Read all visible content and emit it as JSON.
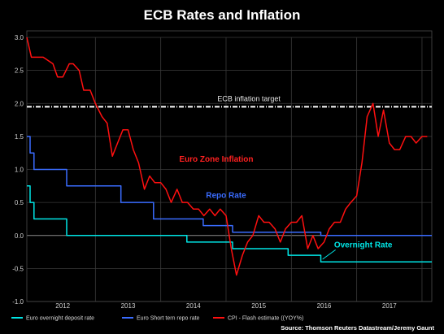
{
  "chart_data": {
    "type": "line",
    "title": "ECB Rates and Inflation",
    "xlabel": "",
    "ylabel": "",
    "xlim": [
      2011.45,
      2017.65
    ],
    "ylim": [
      -1.0,
      3.0
    ],
    "y_ticks": [
      "3.0",
      "2.5",
      "2.0",
      "1.5",
      "1.0",
      "0.5",
      "0.0",
      "-0.5",
      "-1.0"
    ],
    "x_ticks": [
      {
        "label": "2012",
        "x": 2012.0
      },
      {
        "label": "2013",
        "x": 2013.0
      },
      {
        "label": "2014",
        "x": 2014.0
      },
      {
        "label": "2015",
        "x": 2015.0
      },
      {
        "label": "2016",
        "x": 2016.0
      },
      {
        "label": "2017",
        "x": 2017.0
      }
    ],
    "x_grid": [
      2012.5,
      2013.5,
      2014.5,
      2015.5,
      2016.5,
      2017.5
    ],
    "grid": true,
    "target": {
      "value": 1.95,
      "label": "ECB inflation target",
      "color": "#ffffff"
    },
    "series": [
      {
        "name": "Euro overnight deposit rate",
        "color": "#00e5e5",
        "step": true,
        "x": [
          2011.45,
          2011.5,
          2011.56,
          2012.06,
          2013.9,
          2014.6,
          2015.45,
          2015.95,
          2017.65
        ],
        "y": [
          0.75,
          0.5,
          0.25,
          0.0,
          -0.1,
          -0.2,
          -0.3,
          -0.4,
          -0.4
        ]
      },
      {
        "name": "Euro Short tern repo rate",
        "color": "#3a6cff",
        "step": true,
        "x": [
          2011.45,
          2011.5,
          2011.56,
          2012.06,
          2012.89,
          2013.39,
          2013.89,
          2014.15,
          2014.6,
          2015.0,
          2015.95,
          2017.65
        ],
        "y": [
          1.5,
          1.25,
          1.0,
          0.75,
          0.5,
          0.25,
          0.25,
          0.15,
          0.05,
          0.05,
          0.0,
          0.0
        ]
      },
      {
        "name": "CPI - Flash estimate ((YOY%)",
        "color": "#ff1010",
        "step": false,
        "x": [
          2011.45,
          2011.52,
          2011.6,
          2011.7,
          2011.85,
          2011.92,
          2012.0,
          2012.1,
          2012.16,
          2012.25,
          2012.32,
          2012.42,
          2012.5,
          2012.6,
          2012.68,
          2012.76,
          2012.84,
          2012.92,
          2013.0,
          2013.08,
          2013.16,
          2013.25,
          2013.33,
          2013.41,
          2013.5,
          2013.58,
          2013.66,
          2013.75,
          2013.83,
          2013.91,
          2014.0,
          2014.08,
          2014.16,
          2014.25,
          2014.33,
          2014.41,
          2014.5,
          2014.58,
          2014.66,
          2014.75,
          2014.83,
          2014.91,
          2015.0,
          2015.08,
          2015.16,
          2015.25,
          2015.33,
          2015.41,
          2015.5,
          2015.58,
          2015.66,
          2015.75,
          2015.83,
          2015.91,
          2016.0,
          2016.08,
          2016.16,
          2016.25,
          2016.33,
          2016.41,
          2016.5,
          2016.58,
          2016.66,
          2016.75,
          2016.83,
          2016.91,
          2017.0,
          2017.08,
          2017.16,
          2017.25,
          2017.33,
          2017.41,
          2017.5,
          2017.58
        ],
        "y": [
          3.0,
          2.7,
          2.7,
          2.7,
          2.6,
          2.4,
          2.4,
          2.6,
          2.6,
          2.5,
          2.2,
          2.2,
          2.0,
          1.8,
          1.7,
          1.2,
          1.4,
          1.6,
          1.6,
          1.3,
          1.1,
          0.7,
          0.9,
          0.8,
          0.8,
          0.7,
          0.5,
          0.7,
          0.5,
          0.5,
          0.4,
          0.4,
          0.3,
          0.4,
          0.3,
          0.4,
          0.3,
          -0.2,
          -0.6,
          -0.3,
          -0.1,
          0.0,
          0.3,
          0.2,
          0.2,
          0.1,
          -0.1,
          0.1,
          0.2,
          0.2,
          0.3,
          -0.2,
          0.0,
          -0.2,
          -0.1,
          0.1,
          0.2,
          0.2,
          0.4,
          0.5,
          0.6,
          1.1,
          1.8,
          2.0,
          1.5,
          1.9,
          1.4,
          1.3,
          1.3,
          1.5,
          1.5,
          1.4,
          1.5,
          1.5
        ]
      }
    ],
    "annotations": [
      {
        "text": "Euro Zone Inflation",
        "x": 2014.35,
        "y": 1.12,
        "color": "#ff2020"
      },
      {
        "text": "Repo Rate",
        "x": 2014.5,
        "y": 0.57,
        "color": "#3a6cff"
      },
      {
        "text": "Overnight Rate",
        "x": 2016.6,
        "y": -0.18,
        "color": "#00e5e5"
      }
    ],
    "legend_position": "bottom-left",
    "source": "Source: Thomson Reuters Datastream/Jeremy Gaunt"
  }
}
